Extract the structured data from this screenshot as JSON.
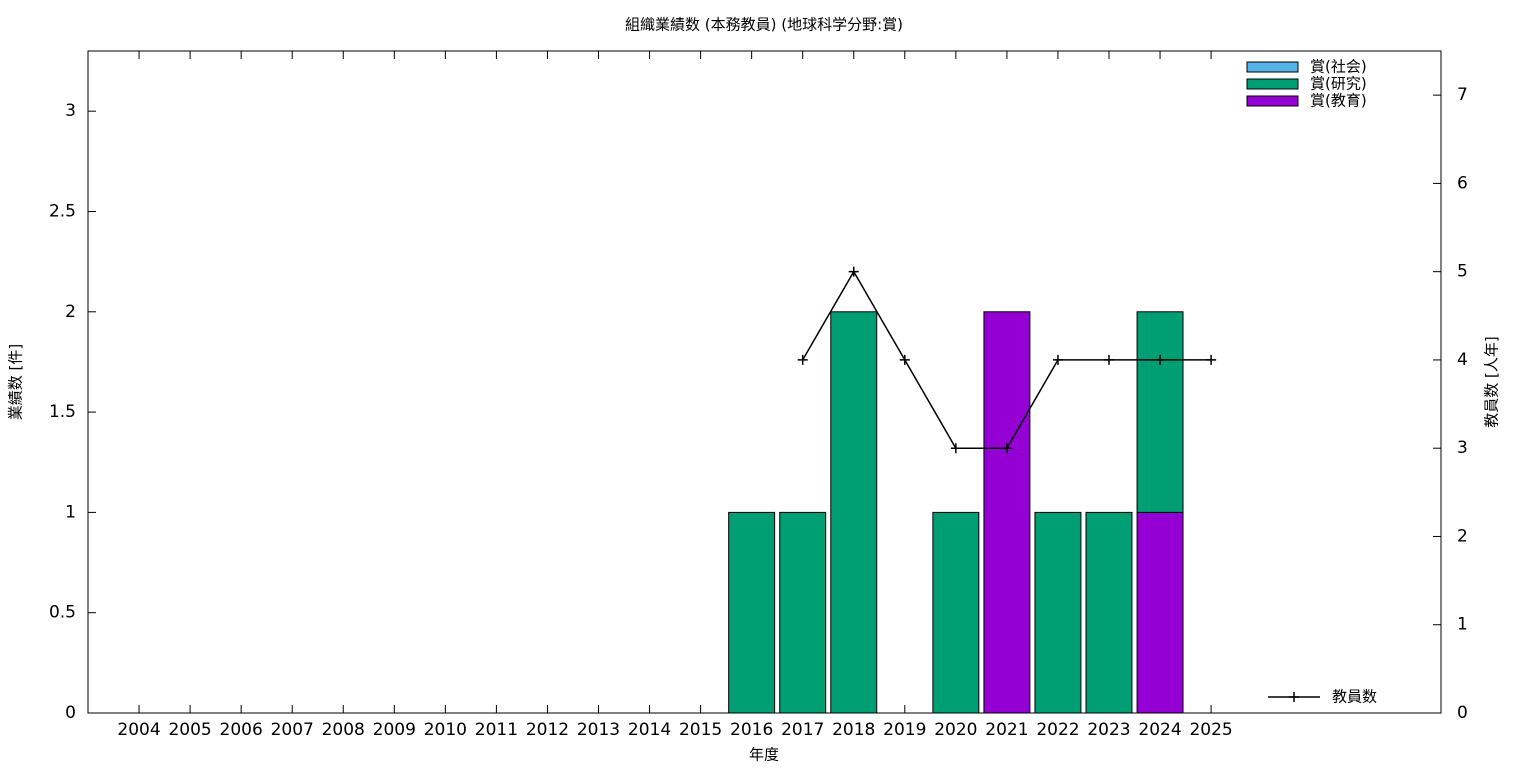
{
  "chart_data": {
    "type": "bar",
    "stacked": true,
    "title": "組織業績数 (本務教員) (地球科学分野:賞)",
    "x_label": "年度",
    "y_label": "業績数 [件]",
    "y2_label": "教員数 [人年]",
    "categories": [
      "2004",
      "2005",
      "2006",
      "2007",
      "2008",
      "2009",
      "2010",
      "2011",
      "2012",
      "2013",
      "2014",
      "2015",
      "2016",
      "2017",
      "2018",
      "2019",
      "2020",
      "2021",
      "2022",
      "2023",
      "2024",
      "2025"
    ],
    "series": [
      {
        "name": "賞(社会)",
        "color": "#56b4e9",
        "values": [
          0,
          0,
          0,
          0,
          0,
          0,
          0,
          0,
          0,
          0,
          0,
          0,
          0,
          0,
          0,
          0,
          0,
          0,
          0,
          0,
          0,
          0
        ]
      },
      {
        "name": "賞(研究)",
        "color": "#009e73",
        "values": [
          0,
          0,
          0,
          0,
          0,
          0,
          0,
          0,
          0,
          0,
          0,
          0,
          1,
          1,
          2,
          0,
          1,
          0,
          1,
          1,
          1,
          0
        ]
      },
      {
        "name": "賞(教育)",
        "color": "#9400d3",
        "values": [
          0,
          0,
          0,
          0,
          0,
          0,
          0,
          0,
          0,
          0,
          0,
          0,
          0,
          0,
          0,
          0,
          0,
          2,
          0,
          0,
          1,
          0
        ]
      },
      {
        "name": "教員数",
        "color": "#000000",
        "type": "line",
        "axis": "y2",
        "values": [
          null,
          null,
          null,
          null,
          null,
          null,
          null,
          null,
          null,
          null,
          null,
          null,
          null,
          4,
          5,
          4,
          3,
          3,
          4,
          4,
          4,
          4
        ]
      }
    ],
    "ylim": [
      0,
      3.3
    ],
    "yticks": [
      0,
      0.5,
      1,
      1.5,
      2,
      2.5,
      3
    ],
    "y2lim": [
      0,
      7.5
    ],
    "y2ticks": [
      0,
      1,
      2,
      3,
      4,
      5,
      6,
      7
    ]
  }
}
